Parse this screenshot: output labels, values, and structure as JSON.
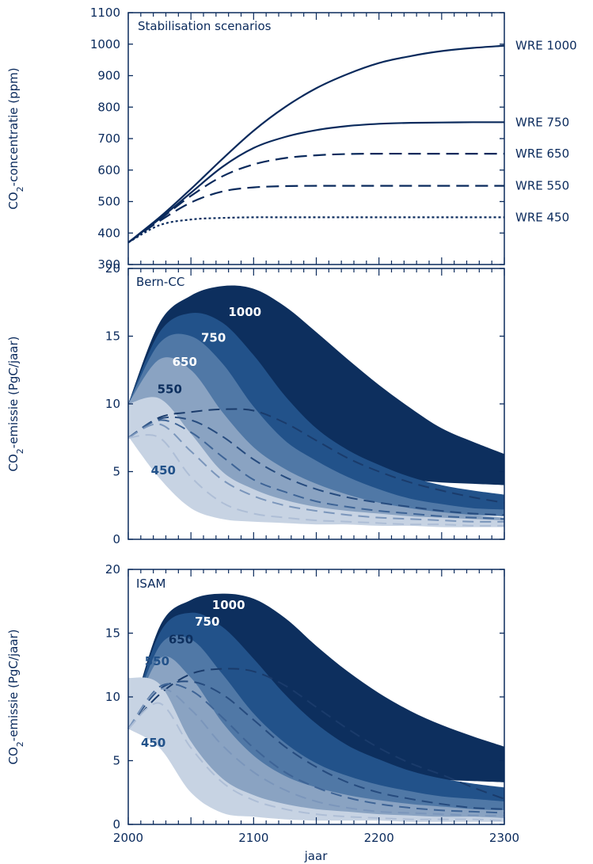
{
  "chart_data": [
    {
      "type": "line",
      "title": "Stabilisation scenarios",
      "ylabel": "CO₂-concentratie (ppm)",
      "xlabel": "",
      "xlim": [
        2000,
        2300
      ],
      "ylim": [
        300,
        1100
      ],
      "yticks": [
        300,
        400,
        500,
        600,
        700,
        800,
        900,
        1000,
        1100
      ],
      "x": [
        2000,
        2025,
        2050,
        2075,
        2100,
        2125,
        2150,
        2175,
        2200,
        2225,
        2250,
        2275,
        2300
      ],
      "series": [
        {
          "name": "WRE 1000",
          "style": "solid",
          "values": [
            370,
            450,
            540,
            635,
            725,
            800,
            860,
            905,
            940,
            962,
            978,
            988,
            995
          ]
        },
        {
          "name": "WRE 750",
          "style": "solid",
          "values": [
            370,
            445,
            528,
            610,
            670,
            705,
            727,
            740,
            747,
            750,
            751,
            752,
            752
          ]
        },
        {
          "name": "WRE 650",
          "style": "dashed",
          "values": [
            370,
            443,
            518,
            580,
            618,
            638,
            647,
            651,
            652,
            652,
            652,
            652,
            652
          ]
        },
        {
          "name": "WRE 550",
          "style": "dashed",
          "values": [
            370,
            438,
            497,
            532,
            545,
            549,
            550,
            550,
            550,
            550,
            550,
            550,
            550
          ]
        },
        {
          "name": "WRE 450",
          "style": "dotted",
          "values": [
            370,
            425,
            443,
            448,
            450,
            450,
            450,
            450,
            450,
            450,
            450,
            450,
            450
          ]
        }
      ]
    },
    {
      "type": "area",
      "title": "Bern-CC",
      "ylabel": "CO₂-emissie (PgC/jaar)",
      "xlabel": "",
      "xlim": [
        2000,
        2300
      ],
      "ylim": [
        0,
        20
      ],
      "yticks": [
        0,
        5,
        10,
        15,
        20
      ],
      "x": [
        2000,
        2025,
        2050,
        2075,
        2100,
        2125,
        2150,
        2175,
        2200,
        2225,
        2250,
        2275,
        2300
      ],
      "bands": [
        {
          "label": "1000",
          "upper": [
            10.0,
            16.0,
            18.0,
            18.7,
            18.5,
            17.2,
            15.3,
            13.3,
            11.4,
            9.7,
            8.2,
            7.2,
            6.3
          ],
          "lower": [
            10.0,
            9.5,
            9.0,
            8.8,
            8.7,
            8.0,
            6.8,
            5.6,
            4.8,
            4.4,
            4.2,
            4.1,
            4.0
          ]
        },
        {
          "label": "750",
          "upper": [
            10.0,
            15.3,
            16.7,
            16.0,
            13.6,
            10.6,
            8.2,
            6.6,
            5.5,
            4.6,
            4.0,
            3.6,
            3.3
          ],
          "lower": [
            10.0,
            9.0,
            8.0,
            7.0,
            5.5,
            4.2,
            3.2,
            2.7,
            2.5,
            2.3,
            2.1,
            2.0,
            1.9
          ]
        },
        {
          "label": "650",
          "upper": [
            10.0,
            14.5,
            15.0,
            13.0,
            9.8,
            7.3,
            5.8,
            4.6,
            3.7,
            3.0,
            2.6,
            2.3,
            2.2
          ],
          "lower": [
            10.0,
            8.5,
            6.5,
            4.8,
            3.7,
            3.0,
            2.6,
            2.3,
            2.1,
            2.0,
            1.9,
            1.8,
            1.7
          ]
        },
        {
          "label": "550",
          "upper": [
            10.0,
            13.3,
            12.5,
            9.4,
            6.8,
            5.2,
            4.1,
            3.3,
            2.7,
            2.3,
            2.0,
            1.8,
            1.6
          ],
          "lower": [
            10.0,
            7.5,
            4.8,
            3.4,
            2.6,
            2.2,
            1.9,
            1.7,
            1.6,
            1.5,
            1.4,
            1.3,
            1.3
          ]
        },
        {
          "label": "450",
          "upper": [
            10.0,
            10.4,
            7.8,
            5.0,
            3.7,
            2.9,
            2.4,
            2.1,
            1.9,
            1.7,
            1.6,
            1.5,
            1.4
          ],
          "lower": [
            7.6,
            4.5,
            2.3,
            1.5,
            1.3,
            1.2,
            1.1,
            1.1,
            1.0,
            1.0,
            0.9,
            0.9,
            0.9
          ]
        }
      ],
      "dashed": [
        {
          "label": "1000",
          "values": [
            7.5,
            9.0,
            9.4,
            9.6,
            9.5,
            8.6,
            7.3,
            6.0,
            5.0,
            4.2,
            3.6,
            3.1,
            2.7
          ]
        },
        {
          "label": "750",
          "values": [
            7.5,
            8.9,
            8.8,
            7.6,
            5.9,
            4.6,
            3.7,
            3.1,
            2.7,
            2.4,
            2.1,
            1.9,
            1.8
          ]
        },
        {
          "label": "650",
          "values": [
            7.5,
            8.8,
            7.9,
            6.1,
            4.4,
            3.5,
            2.8,
            2.4,
            2.1,
            1.9,
            1.7,
            1.6,
            1.5
          ]
        },
        {
          "label": "550",
          "values": [
            7.5,
            8.5,
            6.5,
            4.4,
            3.2,
            2.5,
            2.1,
            1.8,
            1.6,
            1.5,
            1.4,
            1.3,
            1.3
          ]
        },
        {
          "label": "450",
          "values": [
            7.5,
            7.5,
            4.6,
            2.7,
            1.9,
            1.6,
            1.4,
            1.3,
            1.2,
            1.1,
            1.1,
            1.0,
            1.0
          ]
        }
      ],
      "colors": [
        "#0d2f5e",
        "#22528a",
        "#5078a6",
        "#8aa3c2",
        "#c7d3e3"
      ],
      "dash_colors": [
        "#1a3b6b",
        "#264b7e",
        "#3e6496",
        "#7b96bb",
        "#aebed6"
      ]
    },
    {
      "type": "area",
      "title": "ISAM",
      "ylabel": "CO₂-emissie (PgC/jaar)",
      "xlabel": "jaar",
      "xlim": [
        2000,
        2300
      ],
      "ylim": [
        0,
        20
      ],
      "yticks": [
        0,
        5,
        10,
        15,
        20
      ],
      "xticks": [
        2000,
        2100,
        2200,
        2300
      ],
      "x": [
        2000,
        2025,
        2050,
        2075,
        2100,
        2125,
        2150,
        2175,
        2200,
        2225,
        2250,
        2275,
        2300
      ],
      "bands": [
        {
          "label": "1000",
          "upper": [
            7.5,
            15.5,
            17.6,
            18.1,
            17.7,
            16.2,
            14.0,
            12.0,
            10.3,
            8.9,
            7.8,
            6.9,
            6.1
          ],
          "lower": [
            7.5,
            9.5,
            10.0,
            9.3,
            8.2,
            6.8,
            5.5,
            4.6,
            4.1,
            3.7,
            3.5,
            3.4,
            3.3
          ]
        },
        {
          "label": "750",
          "upper": [
            7.5,
            15.0,
            16.6,
            15.5,
            13.0,
            10.2,
            7.9,
            6.2,
            5.1,
            4.2,
            3.6,
            3.2,
            2.9
          ],
          "lower": [
            7.5,
            9.0,
            8.0,
            6.0,
            4.4,
            3.4,
            2.8,
            2.4,
            2.2,
            2.0,
            1.9,
            1.8,
            1.7
          ]
        },
        {
          "label": "650",
          "upper": [
            7.5,
            14.0,
            14.5,
            11.8,
            8.7,
            6.4,
            4.8,
            3.8,
            3.1,
            2.6,
            2.2,
            2.0,
            1.8
          ],
          "lower": [
            7.5,
            8.5,
            6.2,
            3.8,
            2.5,
            2.0,
            1.7,
            1.5,
            1.4,
            1.3,
            1.2,
            1.1,
            1.1
          ]
        },
        {
          "label": "550",
          "upper": [
            7.5,
            13.0,
            11.5,
            8.0,
            5.4,
            3.8,
            2.9,
            2.3,
            1.9,
            1.6,
            1.4,
            1.2,
            1.1
          ],
          "lower": [
            7.5,
            8.0,
            4.5,
            2.2,
            1.4,
            1.0,
            0.8,
            0.7,
            0.6,
            0.6,
            0.5,
            0.5,
            0.5
          ]
        },
        {
          "label": "450",
          "upper": [
            11.5,
            11.0,
            6.5,
            3.6,
            2.3,
            1.6,
            1.2,
            1.0,
            0.8,
            0.7,
            0.6,
            0.6,
            0.5
          ],
          "lower": [
            7.5,
            6.0,
            2.5,
            0.9,
            0.6,
            0.4,
            0.3,
            0.3,
            0.3,
            0.2,
            0.2,
            0.2,
            0.2
          ]
        }
      ],
      "dashed": [
        {
          "label": "1000",
          "values": [
            7.5,
            10.2,
            11.8,
            12.2,
            12.0,
            10.9,
            9.2,
            7.5,
            6.0,
            4.8,
            3.9,
            2.9,
            2.0
          ]
        },
        {
          "label": "750",
          "values": [
            7.5,
            10.6,
            11.2,
            10.2,
            8.2,
            6.1,
            4.5,
            3.3,
            2.5,
            2.0,
            1.6,
            1.3,
            1.2
          ]
        },
        {
          "label": "650",
          "values": [
            7.5,
            10.8,
            10.5,
            8.4,
            6.0,
            4.1,
            2.9,
            2.1,
            1.6,
            1.3,
            1.1,
            1.0,
            0.9
          ]
        },
        {
          "label": "550",
          "values": [
            7.5,
            10.6,
            9.0,
            6.2,
            4.1,
            2.7,
            1.8,
            1.3,
            1.0,
            0.9,
            0.8,
            0.7,
            0.7
          ]
        },
        {
          "label": "450",
          "values": [
            7.5,
            9.5,
            6.0,
            3.3,
            1.9,
            1.2,
            0.8,
            0.6,
            0.5,
            0.4,
            0.4,
            0.4,
            0.3
          ]
        }
      ],
      "colors": [
        "#0d2f5e",
        "#22528a",
        "#5078a6",
        "#8aa3c2",
        "#c7d3e3"
      ],
      "dash_colors": [
        "#1a3b6b",
        "#264b7e",
        "#3e6496",
        "#7b96bb",
        "#aebed6"
      ]
    }
  ]
}
